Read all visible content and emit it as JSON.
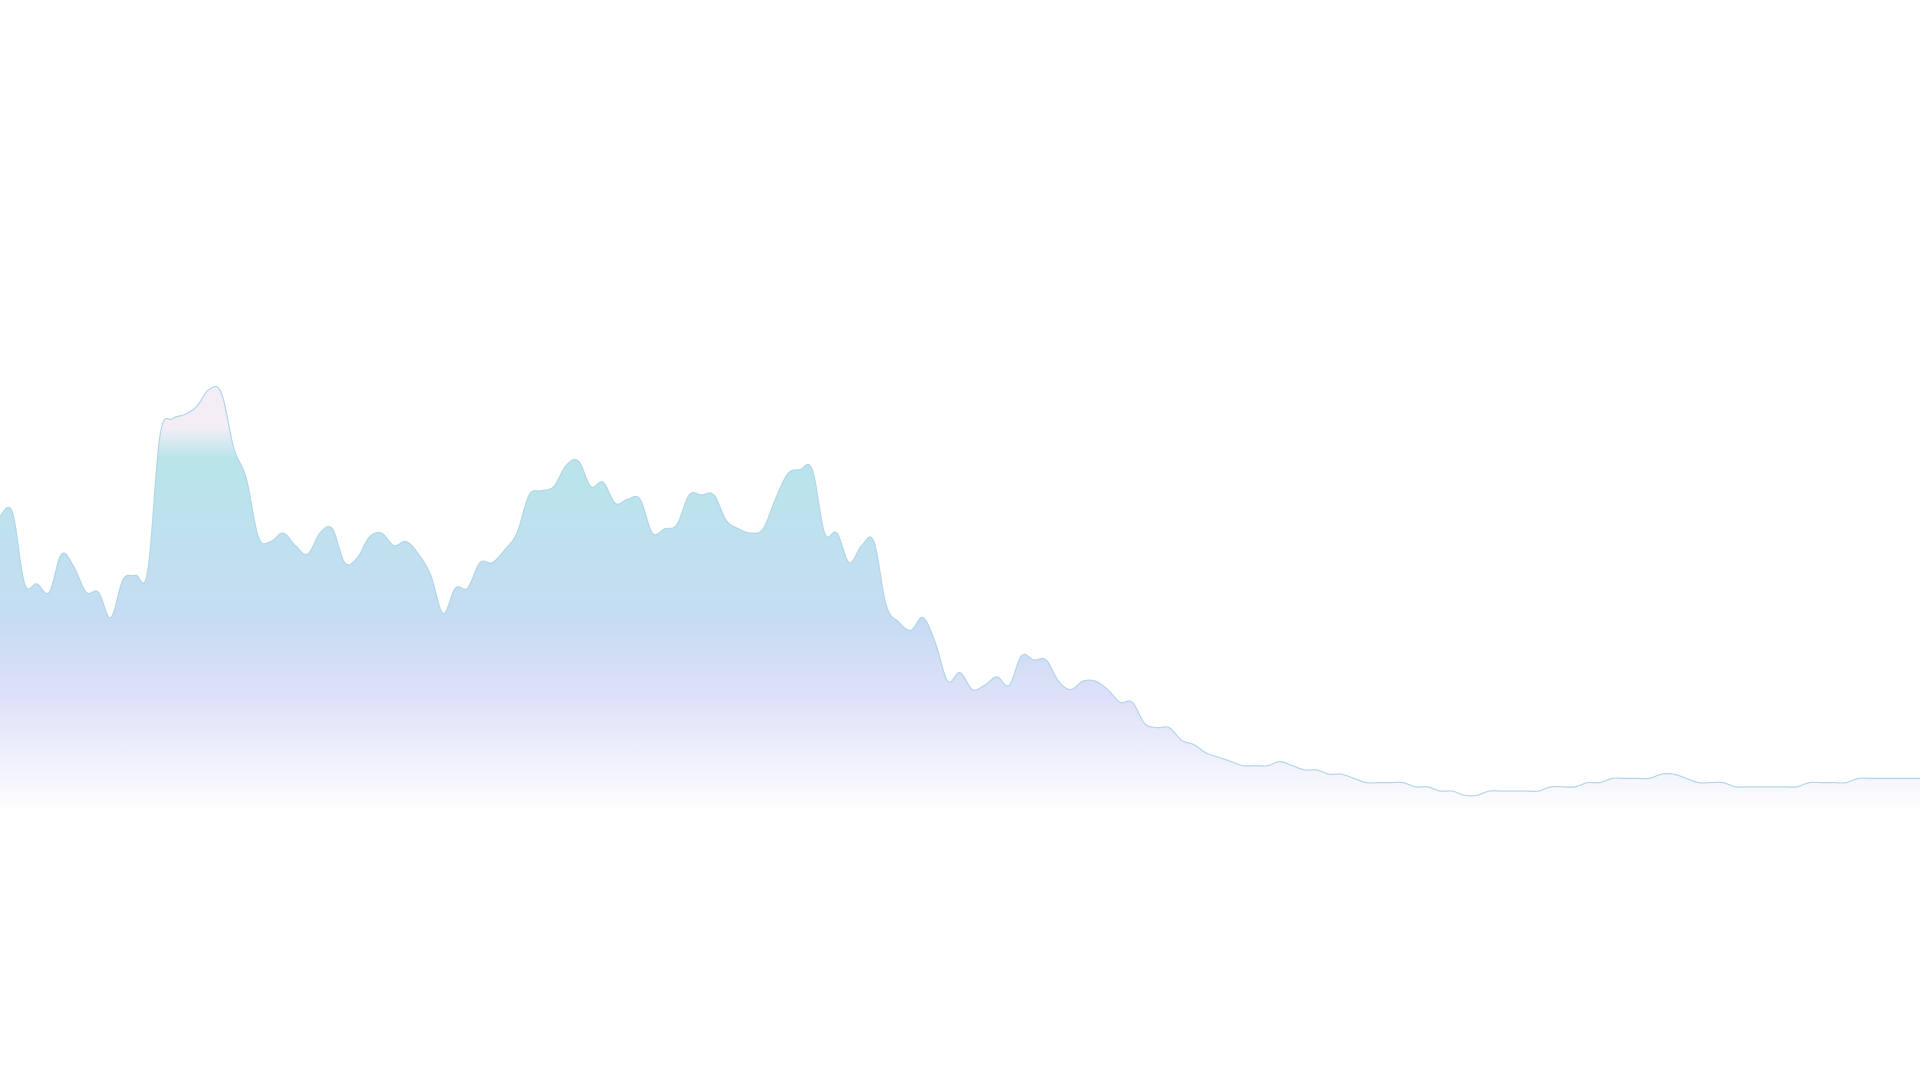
{
  "chart_data": {
    "type": "area",
    "title": "",
    "xlabel": "",
    "ylabel": "",
    "x": [
      0,
      1,
      2,
      3,
      4,
      5,
      6,
      7,
      8,
      9,
      10,
      11,
      12,
      13,
      14,
      15,
      16,
      17,
      18,
      19,
      20,
      21,
      22,
      23,
      24,
      25,
      26,
      27,
      28,
      29,
      30,
      31,
      32,
      33,
      34,
      35,
      36,
      37,
      38,
      39,
      40,
      41,
      42,
      43,
      44,
      45,
      46,
      47,
      48,
      49,
      50,
      51,
      52,
      53,
      54,
      55,
      56,
      57,
      58,
      59,
      60,
      61,
      62,
      63,
      64,
      65,
      66,
      67,
      68,
      69,
      70,
      71,
      72,
      73,
      74,
      75,
      76,
      77,
      78,
      79,
      80,
      81,
      82,
      83,
      84,
      85,
      86,
      87,
      88,
      89,
      90,
      91,
      92,
      93,
      94,
      95,
      96,
      97,
      98,
      99,
      100,
      101,
      102,
      103,
      104,
      105,
      106,
      107,
      108,
      109,
      110,
      111,
      112,
      113,
      114,
      115,
      116,
      117,
      118,
      119,
      120,
      121,
      122,
      123,
      124,
      125,
      126,
      127,
      128,
      129,
      130,
      131,
      132,
      133,
      134,
      135,
      136,
      137,
      138,
      139,
      140,
      141,
      142,
      143,
      144,
      145,
      146,
      147,
      148,
      149,
      150,
      151,
      152,
      153,
      154,
      155,
      156
    ],
    "series": [
      {
        "values": [
          69,
          70,
          53,
          53,
          51,
          60,
          57,
          51,
          51,
          45,
          54,
          55,
          56,
          88,
          92,
          93,
          95,
          99,
          98,
          85,
          78,
          64,
          63,
          65,
          62,
          60,
          65,
          66,
          58,
          59,
          64,
          65,
          62,
          63,
          60,
          55,
          46,
          52,
          52,
          58,
          58,
          61,
          65,
          74,
          75,
          76,
          81,
          82,
          76,
          77,
          72,
          73,
          73,
          65,
          66,
          67,
          74,
          74,
          74,
          68,
          66,
          65,
          66,
          73,
          79,
          80,
          80,
          65,
          65,
          58,
          62,
          63,
          48,
          44,
          42,
          45,
          39,
          30,
          32,
          28,
          29,
          31,
          29,
          36,
          35,
          35,
          30,
          28,
          30,
          30,
          28,
          25,
          25,
          20,
          19,
          19,
          16,
          15,
          13,
          12,
          11,
          10,
          10,
          10,
          11,
          10,
          9,
          9,
          8,
          8,
          7,
          6,
          6,
          6,
          6,
          5,
          5,
          4,
          4,
          3,
          3,
          4,
          4,
          4,
          4,
          4,
          5,
          5,
          5,
          6,
          6,
          7,
          7,
          7,
          7,
          8,
          8,
          7,
          6,
          6,
          6,
          5,
          5,
          5,
          5,
          5,
          5,
          6,
          6,
          6,
          6,
          7,
          7,
          7,
          7,
          7,
          7
        ]
      }
    ],
    "ylim": [
      0,
      100
    ],
    "grid": false,
    "legend": "none"
  },
  "colors": {
    "line": "#b3d6e8",
    "gradient_top": "#f3eef6",
    "gradient_cyan": "#b8e5ea",
    "gradient_mid": "#c6dcf3",
    "gradient_lavender": "#dde0f8",
    "gradient_bottom": "#ffffff",
    "background": "#ffffff"
  }
}
